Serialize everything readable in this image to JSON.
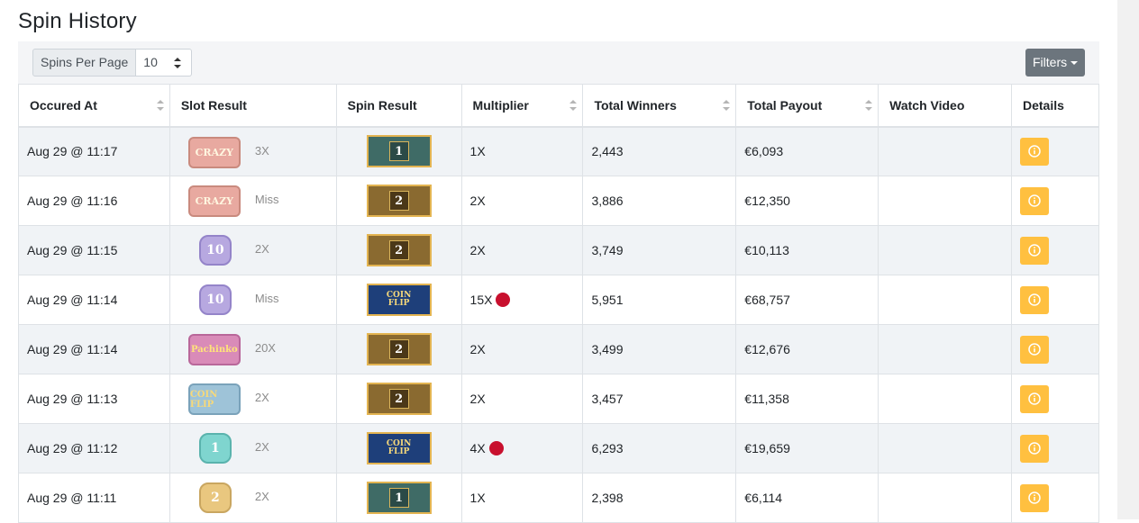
{
  "page": {
    "title": "Spin History"
  },
  "toolbar": {
    "spins_label": "Spins Per Page",
    "spins_value": "10",
    "filters_label": "Filters"
  },
  "columns": [
    "Occured At",
    "Slot Result",
    "Spin Result",
    "Multiplier",
    "Total Winners",
    "Total Payout",
    "Watch Video",
    "Details"
  ],
  "colors": {
    "details_button": "#ffc040",
    "filters_button": "#6c757d",
    "mult_dot": "#c8102e"
  },
  "rows": [
    {
      "time": "Aug 29 @ 11:17",
      "slot_icon": "crazy-time",
      "slot_text": "CRAZY",
      "slot_mult": "3X",
      "spin_icon": "one",
      "spin_text": "1",
      "multiplier": "1X",
      "dot": false,
      "winners": "2,443",
      "payout": "€6,093"
    },
    {
      "time": "Aug 29 @ 11:16",
      "slot_icon": "crazy-time",
      "slot_text": "CRAZY",
      "slot_mult": "Miss",
      "spin_icon": "two",
      "spin_text": "2",
      "multiplier": "2X",
      "dot": false,
      "winners": "3,886",
      "payout": "€12,350"
    },
    {
      "time": "Aug 29 @ 11:15",
      "slot_icon": "ten",
      "slot_text": "10",
      "slot_mult": "2X",
      "spin_icon": "two",
      "spin_text": "2",
      "multiplier": "2X",
      "dot": false,
      "winners": "3,749",
      "payout": "€10,113"
    },
    {
      "time": "Aug 29 @ 11:14",
      "slot_icon": "ten",
      "slot_text": "10",
      "slot_mult": "Miss",
      "spin_icon": "coin-flip",
      "spin_text": "COIN FLIP",
      "multiplier": "15X",
      "dot": true,
      "winners": "5,951",
      "payout": "€68,757"
    },
    {
      "time": "Aug 29 @ 11:14",
      "slot_icon": "pachinko",
      "slot_text": "Pachinko",
      "slot_mult": "20X",
      "spin_icon": "two",
      "spin_text": "2",
      "multiplier": "2X",
      "dot": false,
      "winners": "3,499",
      "payout": "€12,676"
    },
    {
      "time": "Aug 29 @ 11:13",
      "slot_icon": "coin-flip",
      "slot_text": "COIN FLIP",
      "slot_mult": "2X",
      "spin_icon": "two",
      "spin_text": "2",
      "multiplier": "2X",
      "dot": false,
      "winners": "3,457",
      "payout": "€11,358"
    },
    {
      "time": "Aug 29 @ 11:12",
      "slot_icon": "one",
      "slot_text": "1",
      "slot_mult": "2X",
      "spin_icon": "coin-flip",
      "spin_text": "COIN FLIP",
      "multiplier": "4X",
      "dot": true,
      "winners": "6,293",
      "payout": "€19,659"
    },
    {
      "time": "Aug 29 @ 11:11",
      "slot_icon": "two",
      "slot_text": "2",
      "slot_mult": "2X",
      "spin_icon": "one",
      "spin_text": "1",
      "multiplier": "1X",
      "dot": false,
      "winners": "2,398",
      "payout": "€6,114"
    }
  ]
}
